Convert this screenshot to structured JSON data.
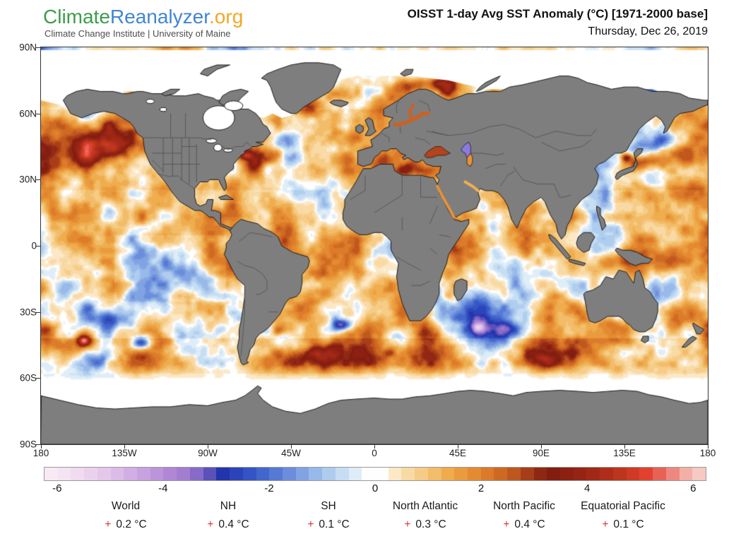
{
  "header": {
    "logo": {
      "part1": "Climate",
      "part2": "Reanalyzer",
      "part3": ".org",
      "color1": "#3d9c4c",
      "color2": "#4285d4",
      "color3": "#f5a623"
    },
    "subtitle": "Climate Change Institute | University of Maine",
    "title": "OISST 1-day Avg SST Anomaly (°C) [1971-2000 base]",
    "date": "Thursday, Dec 26, 2019"
  },
  "chart_data": {
    "type": "heatmap",
    "title": "OISST 1-day Avg SST Anomaly (°C) [1971-2000 base]",
    "date": "Thursday, Dec 26, 2019",
    "projection": "equirectangular",
    "lat_ticks": [
      "90N",
      "60N",
      "30N",
      "0",
      "30S",
      "60S",
      "90S"
    ],
    "lon_ticks": [
      "180",
      "135W",
      "90W",
      "45W",
      "0",
      "45E",
      "90E",
      "135E",
      "180"
    ],
    "colorbar": {
      "min": -6.25,
      "max": 6.25,
      "step": 0.25,
      "tick_labels": [
        "-6",
        "-4",
        "-2",
        "0",
        "2",
        "4",
        "6"
      ],
      "tick_values": [
        -6,
        -4,
        -2,
        0,
        2,
        4,
        6
      ],
      "stops": [
        [
          -6.25,
          "#f9edf6"
        ],
        [
          -6,
          "#f7e7f3"
        ],
        [
          -5.5,
          "#eed7ef"
        ],
        [
          -5,
          "#e0c3ea"
        ],
        [
          -4.5,
          "#cda9e2"
        ],
        [
          -4,
          "#b78dd8"
        ],
        [
          -3.6,
          "#a17cd0"
        ],
        [
          -3.3,
          "#7f66c6"
        ],
        [
          -3.05,
          "#4b48b4"
        ],
        [
          -2.9,
          "#2433ac"
        ],
        [
          -2.5,
          "#2f4cc0"
        ],
        [
          -2,
          "#4a6fd0"
        ],
        [
          -1.5,
          "#7698e0"
        ],
        [
          -1,
          "#a3c4ec"
        ],
        [
          -0.6,
          "#c8e0f4"
        ],
        [
          -0.3,
          "#e6f1fa"
        ],
        [
          -0.12,
          "#ffffff"
        ],
        [
          0.12,
          "#ffffff"
        ],
        [
          0.3,
          "#fcecd1"
        ],
        [
          0.6,
          "#f9dca8"
        ],
        [
          1,
          "#f4c477"
        ],
        [
          1.4,
          "#efab4a"
        ],
        [
          1.8,
          "#e78f33"
        ],
        [
          2.2,
          "#d97627"
        ],
        [
          2.6,
          "#c25a1d"
        ],
        [
          3,
          "#9c3016"
        ],
        [
          3.3,
          "#7f1d10"
        ],
        [
          3.7,
          "#8f2113"
        ],
        [
          4.2,
          "#a52a18"
        ],
        [
          4.7,
          "#c1381f"
        ],
        [
          5.1,
          "#e23e2d"
        ],
        [
          5.5,
          "#ec7268"
        ],
        [
          5.8,
          "#f3a89e"
        ],
        [
          6.25,
          "#f8d7cf"
        ]
      ]
    },
    "region_anomalies": [
      {
        "label": "World",
        "plus": "+",
        "value": "0.2 °C"
      },
      {
        "label": "NH",
        "plus": "+",
        "value": "0.4 °C"
      },
      {
        "label": "SH",
        "plus": "+",
        "value": "0.1 °C"
      },
      {
        "label": "North Atlantic",
        "plus": "+",
        "value": "0.3 °C"
      },
      {
        "label": "North Pacific",
        "plus": "+",
        "value": "0.4 °C"
      },
      {
        "label": "Equatorial Pacific",
        "plus": "+",
        "value": "0.1 °C"
      }
    ],
    "map_colors": {
      "land": "#7e7e7e",
      "coast": "#1c1c1c",
      "country_border": "#4f4f4f",
      "ice": "#ffffff",
      "frame": "#333333",
      "plus_accent": "#e03030"
    }
  }
}
